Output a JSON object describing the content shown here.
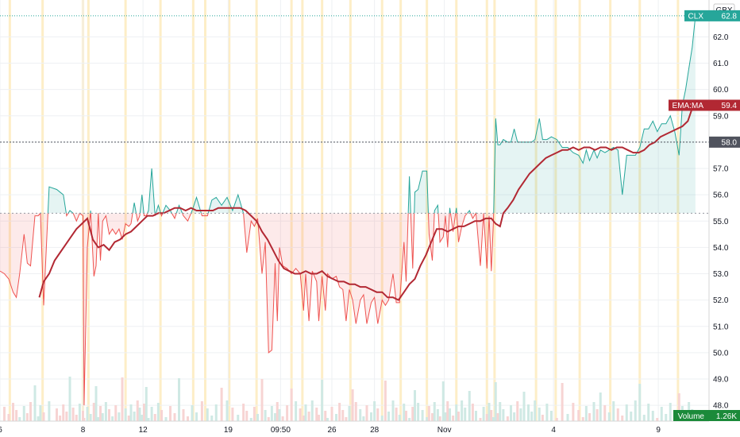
{
  "chart_data": {
    "type": "line",
    "currency": "GBX",
    "ylim": [
      47.4,
      63.4
    ],
    "y_ticks": [
      "62.0",
      "61.0",
      "60.0",
      "59.0",
      "58.0",
      "57.0",
      "56.0",
      "55.0",
      "54.0",
      "53.0",
      "52.0",
      "51.0",
      "50.0",
      "49.0",
      "48.0"
    ],
    "x_ticks": [
      "6",
      "8",
      "12",
      "19",
      "09:50",
      "26",
      "28",
      "Nov",
      "4",
      "9"
    ],
    "baseline": 55.3,
    "crosshair_value": "58.0",
    "series": [
      {
        "name": "CLX",
        "last_value": "62.8",
        "color_up": "#26a69a",
        "color_down": "#ef5350",
        "points": [
          [
            0,
            53.1
          ],
          [
            0.4,
            53.0
          ],
          [
            0.8,
            52.8
          ],
          [
            1.2,
            52.3
          ],
          [
            1.5,
            52.1
          ],
          [
            1.8,
            53.0
          ],
          [
            2.2,
            54.5
          ],
          [
            2.5,
            53.4
          ],
          [
            2.8,
            53.3
          ],
          [
            3.2,
            55.2
          ],
          [
            3.5,
            55.2
          ],
          [
            3.7,
            55.3
          ],
          [
            4.0,
            51.8
          ],
          [
            4.5,
            56.3
          ],
          [
            5.2,
            56.2
          ],
          [
            5.5,
            56.1
          ],
          [
            5.8,
            56.0
          ],
          [
            6.1,
            55.2
          ],
          [
            6.4,
            55.4
          ],
          [
            6.7,
            55.3
          ],
          [
            7.0,
            55.0
          ],
          [
            7.3,
            55.3
          ],
          [
            7.6,
            55.2
          ],
          [
            7.7,
            48.0
          ],
          [
            8.0,
            54.0
          ],
          [
            8.3,
            55.4
          ],
          [
            8.6,
            52.9
          ],
          [
            8.8,
            53.3
          ],
          [
            9.0,
            55.3
          ],
          [
            9.2,
            53.5
          ],
          [
            9.4,
            55.0
          ],
          [
            9.7,
            55.2
          ],
          [
            10.0,
            54.5
          ],
          [
            10.3,
            54.7
          ],
          [
            10.6,
            54.5
          ],
          [
            10.9,
            54.7
          ],
          [
            11.2,
            54.3
          ],
          [
            11.5,
            54.9
          ],
          [
            11.8,
            54.8
          ],
          [
            12.0,
            54.9
          ],
          [
            12.3,
            55.7
          ],
          [
            12.6,
            55.0
          ],
          [
            12.8,
            55.2
          ],
          [
            13.0,
            56.0
          ],
          [
            13.2,
            55.2
          ],
          [
            13.4,
            55.2
          ],
          [
            13.6,
            55.4
          ],
          [
            13.9,
            57.0
          ],
          [
            14.2,
            55.2
          ],
          [
            14.5,
            55.6
          ],
          [
            14.8,
            55.2
          ],
          [
            15.2,
            55.6
          ],
          [
            15.6,
            55.4
          ],
          [
            16.0,
            55.1
          ],
          [
            16.4,
            55.6
          ],
          [
            16.8,
            55.2
          ],
          [
            17.2,
            55.0
          ],
          [
            17.6,
            55.4
          ],
          [
            18.0,
            55.9
          ],
          [
            18.5,
            55.2
          ],
          [
            19.0,
            55.2
          ],
          [
            19.4,
            55.8
          ],
          [
            19.8,
            55.9
          ],
          [
            20.3,
            55.6
          ],
          [
            20.8,
            55.9
          ],
          [
            21.3,
            55.4
          ],
          [
            21.8,
            56.0
          ],
          [
            22.3,
            55.3
          ],
          [
            22.6,
            53.8
          ],
          [
            23.0,
            55.0
          ],
          [
            23.3,
            54.8
          ],
          [
            23.6,
            55.1
          ],
          [
            24.0,
            53.0
          ],
          [
            24.3,
            54.2
          ],
          [
            24.6,
            50.0
          ],
          [
            24.9,
            50.1
          ],
          [
            25.2,
            53.4
          ],
          [
            25.4,
            51.2
          ],
          [
            25.6,
            54.0
          ],
          [
            25.9,
            53.3
          ],
          [
            26.3,
            53.2
          ],
          [
            26.7,
            53.0
          ],
          [
            27.1,
            53.2
          ],
          [
            27.5,
            53.0
          ],
          [
            27.8,
            51.6
          ],
          [
            28.0,
            53.0
          ],
          [
            28.3,
            51.2
          ],
          [
            28.6,
            53.1
          ],
          [
            29.0,
            52.7
          ],
          [
            29.2,
            51.2
          ],
          [
            29.5,
            52.9
          ],
          [
            29.8,
            51.6
          ],
          [
            30.0,
            53.0
          ],
          [
            30.4,
            52.8
          ],
          [
            30.8,
            52.9
          ],
          [
            31.1,
            52.5
          ],
          [
            31.4,
            52.4
          ],
          [
            31.7,
            51.2
          ],
          [
            32.0,
            52.4
          ],
          [
            32.3,
            52.0
          ],
          [
            32.6,
            51.1
          ],
          [
            33.0,
            52.0
          ],
          [
            33.3,
            52.2
          ],
          [
            33.6,
            51.1
          ],
          [
            34.0,
            51.9
          ],
          [
            34.3,
            52.1
          ],
          [
            34.6,
            51.1
          ],
          [
            35.0,
            52.0
          ],
          [
            35.3,
            51.8
          ],
          [
            35.6,
            52.0
          ],
          [
            36.0,
            53.0
          ],
          [
            36.3,
            51.9
          ],
          [
            36.6,
            51.9
          ],
          [
            37.0,
            54.2
          ],
          [
            37.2,
            52.7
          ],
          [
            37.5,
            56.7
          ],
          [
            37.8,
            53.2
          ],
          [
            38.0,
            56.1
          ],
          [
            38.3,
            56.2
          ],
          [
            38.7,
            56.9
          ],
          [
            39.1,
            56.9
          ],
          [
            39.3,
            54.5
          ],
          [
            39.6,
            53.5
          ],
          [
            39.8,
            55.4
          ],
          [
            40.1,
            55.6
          ],
          [
            40.3,
            54.2
          ],
          [
            40.6,
            54.4
          ],
          [
            40.8,
            55.2
          ],
          [
            41.0,
            54.0
          ],
          [
            41.2,
            55.5
          ],
          [
            41.5,
            54.6
          ],
          [
            41.8,
            55.5
          ],
          [
            42.0,
            54.2
          ],
          [
            42.3,
            54.8
          ],
          [
            42.6,
            55.2
          ],
          [
            43.0,
            55.4
          ],
          [
            43.3,
            55.1
          ],
          [
            43.6,
            55.3
          ],
          [
            44.0,
            53.3
          ],
          [
            44.3,
            55.3
          ],
          [
            44.6,
            53.2
          ],
          [
            44.8,
            55.2
          ],
          [
            45.0,
            53.1
          ],
          [
            45.2,
            55.0
          ],
          [
            45.4,
            58.9
          ],
          [
            45.6,
            57.9
          ],
          [
            45.8,
            57.9
          ],
          [
            46.1,
            58.1
          ],
          [
            46.5,
            58.0
          ],
          [
            46.8,
            58.0
          ],
          [
            47.1,
            58.5
          ],
          [
            47.4,
            58.0
          ],
          [
            47.7,
            58.0
          ],
          [
            48.0,
            58.0
          ],
          [
            48.4,
            58.0
          ],
          [
            48.7,
            58.0
          ],
          [
            49.0,
            58.1
          ],
          [
            49.4,
            58.9
          ],
          [
            49.7,
            58.1
          ],
          [
            50.1,
            58.1
          ],
          [
            50.5,
            58.2
          ],
          [
            51.0,
            58.1
          ],
          [
            51.5,
            57.8
          ],
          [
            52.0,
            57.8
          ],
          [
            52.5,
            57.6
          ],
          [
            53.0,
            57.5
          ],
          [
            53.4,
            57.2
          ],
          [
            53.7,
            57.7
          ],
          [
            54.0,
            57.3
          ],
          [
            54.4,
            57.7
          ],
          [
            54.7,
            57.4
          ],
          [
            55.0,
            57.7
          ],
          [
            55.4,
            57.6
          ],
          [
            55.8,
            57.7
          ],
          [
            56.2,
            57.8
          ],
          [
            56.6,
            57.7
          ],
          [
            57.0,
            56.0
          ],
          [
            57.4,
            57.5
          ],
          [
            57.8,
            57.5
          ],
          [
            58.2,
            57.5
          ],
          [
            58.6,
            57.8
          ],
          [
            59.0,
            58.5
          ],
          [
            59.4,
            58.5
          ],
          [
            59.8,
            58.8
          ],
          [
            60.2,
            58.4
          ],
          [
            60.6,
            58.7
          ],
          [
            61.0,
            58.7
          ],
          [
            61.4,
            59.0
          ],
          [
            61.8,
            58.4
          ],
          [
            62.2,
            57.5
          ],
          [
            62.5,
            59.4
          ],
          [
            62.8,
            60.0
          ],
          [
            63.1,
            60.8
          ],
          [
            63.4,
            61.6
          ],
          [
            63.7,
            62.8
          ]
        ]
      },
      {
        "name": "EMA:MA",
        "last_value": "59.4",
        "color": "#b22833",
        "points": [
          [
            3.6,
            52.1
          ],
          [
            4.0,
            52.7
          ],
          [
            4.5,
            53.0
          ],
          [
            5.0,
            53.5
          ],
          [
            5.5,
            53.8
          ],
          [
            6.0,
            54.1
          ],
          [
            6.5,
            54.4
          ],
          [
            7.0,
            54.7
          ],
          [
            7.5,
            54.9
          ],
          [
            8.0,
            55.1
          ],
          [
            8.5,
            54.3
          ],
          [
            9.0,
            54.0
          ],
          [
            9.5,
            54.1
          ],
          [
            10.0,
            53.9
          ],
          [
            10.5,
            54.2
          ],
          [
            11.0,
            54.3
          ],
          [
            11.5,
            54.5
          ],
          [
            12.0,
            54.6
          ],
          [
            12.5,
            54.8
          ],
          [
            13.0,
            55.0
          ],
          [
            13.5,
            55.2
          ],
          [
            14.0,
            55.2
          ],
          [
            14.5,
            55.3
          ],
          [
            15.0,
            55.3
          ],
          [
            15.5,
            55.4
          ],
          [
            16.0,
            55.5
          ],
          [
            16.5,
            55.5
          ],
          [
            17.0,
            55.4
          ],
          [
            17.5,
            55.5
          ],
          [
            18.0,
            55.4
          ],
          [
            18.5,
            55.4
          ],
          [
            19.0,
            55.4
          ],
          [
            19.5,
            55.4
          ],
          [
            20.0,
            55.5
          ],
          [
            20.5,
            55.5
          ],
          [
            21.0,
            55.5
          ],
          [
            21.5,
            55.5
          ],
          [
            22.0,
            55.5
          ],
          [
            22.5,
            55.4
          ],
          [
            23.0,
            55.2
          ],
          [
            23.5,
            55.0
          ],
          [
            24.0,
            54.6
          ],
          [
            24.5,
            54.3
          ],
          [
            25.0,
            53.9
          ],
          [
            25.5,
            53.5
          ],
          [
            26.0,
            53.2
          ],
          [
            26.5,
            53.1
          ],
          [
            27.0,
            53.0
          ],
          [
            27.5,
            53.0
          ],
          [
            28.0,
            53.1
          ],
          [
            28.5,
            53.0
          ],
          [
            29.0,
            53.0
          ],
          [
            29.5,
            53.1
          ],
          [
            30.0,
            52.9
          ],
          [
            30.5,
            52.8
          ],
          [
            31.0,
            52.7
          ],
          [
            31.5,
            52.7
          ],
          [
            32.0,
            52.6
          ],
          [
            32.5,
            52.6
          ],
          [
            33.0,
            52.5
          ],
          [
            33.5,
            52.5
          ],
          [
            34.0,
            52.4
          ],
          [
            34.5,
            52.3
          ],
          [
            35.0,
            52.3
          ],
          [
            35.5,
            52.1
          ],
          [
            36.0,
            52.1
          ],
          [
            36.5,
            52.0
          ],
          [
            37.0,
            52.3
          ],
          [
            37.5,
            52.6
          ],
          [
            38.0,
            52.8
          ],
          [
            38.5,
            53.3
          ],
          [
            39.0,
            53.7
          ],
          [
            39.5,
            54.2
          ],
          [
            40.0,
            54.7
          ],
          [
            40.5,
            54.7
          ],
          [
            41.0,
            54.6
          ],
          [
            41.5,
            54.7
          ],
          [
            42.0,
            54.8
          ],
          [
            42.5,
            54.8
          ],
          [
            43.0,
            54.9
          ],
          [
            43.5,
            55.0
          ],
          [
            44.0,
            55.0
          ],
          [
            44.5,
            55.1
          ],
          [
            45.0,
            55.1
          ],
          [
            45.4,
            54.9
          ],
          [
            45.8,
            54.8
          ],
          [
            46.1,
            55.3
          ],
          [
            46.5,
            55.5
          ],
          [
            47.0,
            55.8
          ],
          [
            47.5,
            56.2
          ],
          [
            48.0,
            56.5
          ],
          [
            48.5,
            56.8
          ],
          [
            49.0,
            57.0
          ],
          [
            49.5,
            57.2
          ],
          [
            50.0,
            57.4
          ],
          [
            50.5,
            57.5
          ],
          [
            51.0,
            57.6
          ],
          [
            51.5,
            57.7
          ],
          [
            52.0,
            57.7
          ],
          [
            52.5,
            57.8
          ],
          [
            53.0,
            57.7
          ],
          [
            53.5,
            57.8
          ],
          [
            54.0,
            57.8
          ],
          [
            54.5,
            57.7
          ],
          [
            55.0,
            57.8
          ],
          [
            55.5,
            57.8
          ],
          [
            56.0,
            57.7
          ],
          [
            56.5,
            57.8
          ],
          [
            57.0,
            57.8
          ],
          [
            57.5,
            57.7
          ],
          [
            58.0,
            57.6
          ],
          [
            58.5,
            57.6
          ],
          [
            59.0,
            57.7
          ],
          [
            59.5,
            57.9
          ],
          [
            60.0,
            58.0
          ],
          [
            60.5,
            58.2
          ],
          [
            61.0,
            58.3
          ],
          [
            61.5,
            58.4
          ],
          [
            62.0,
            58.5
          ],
          [
            62.5,
            58.6
          ],
          [
            63.0,
            58.8
          ],
          [
            63.5,
            59.4
          ]
        ]
      }
    ],
    "volume": {
      "label": "Volume",
      "last_value": "1.26K"
    },
    "grid": true,
    "session_highlight_color": "#fdebbd"
  }
}
